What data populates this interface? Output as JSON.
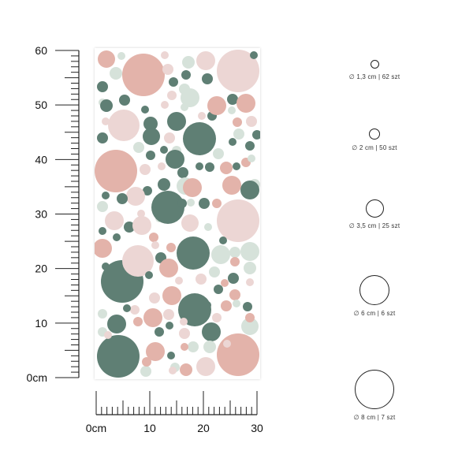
{
  "vertical_ruler": {
    "labels": [
      "60",
      "50",
      "40",
      "30",
      "20",
      "10",
      "0cm"
    ],
    "values": [
      60,
      50,
      40,
      30,
      20,
      10,
      0
    ]
  },
  "horizontal_ruler": {
    "labels": [
      "0cm",
      "10",
      "20",
      "30"
    ],
    "values": [
      0,
      10,
      20,
      30
    ]
  },
  "sheet": {
    "colors": {
      "dark_green": "#5f7f74",
      "pink": "#e3b3aa",
      "light_pink": "#ecd6d4",
      "light_green": "#d6e2da",
      "ruler": "#222222"
    }
  },
  "sizes": [
    {
      "diameter": "∅ 1,3 cm",
      "count": "62 szt",
      "separator": "|"
    },
    {
      "diameter": "∅ 2 cm",
      "count": "50 szt",
      "separator": "|"
    },
    {
      "diameter": "∅ 3,5 cm",
      "count": "25 szt",
      "separator": "|"
    },
    {
      "diameter": "∅ 6 cm",
      "count": "6 szt",
      "separator": "|"
    },
    {
      "diameter": "∅ 8 cm",
      "count": "7 szt",
      "separator": "|"
    }
  ]
}
